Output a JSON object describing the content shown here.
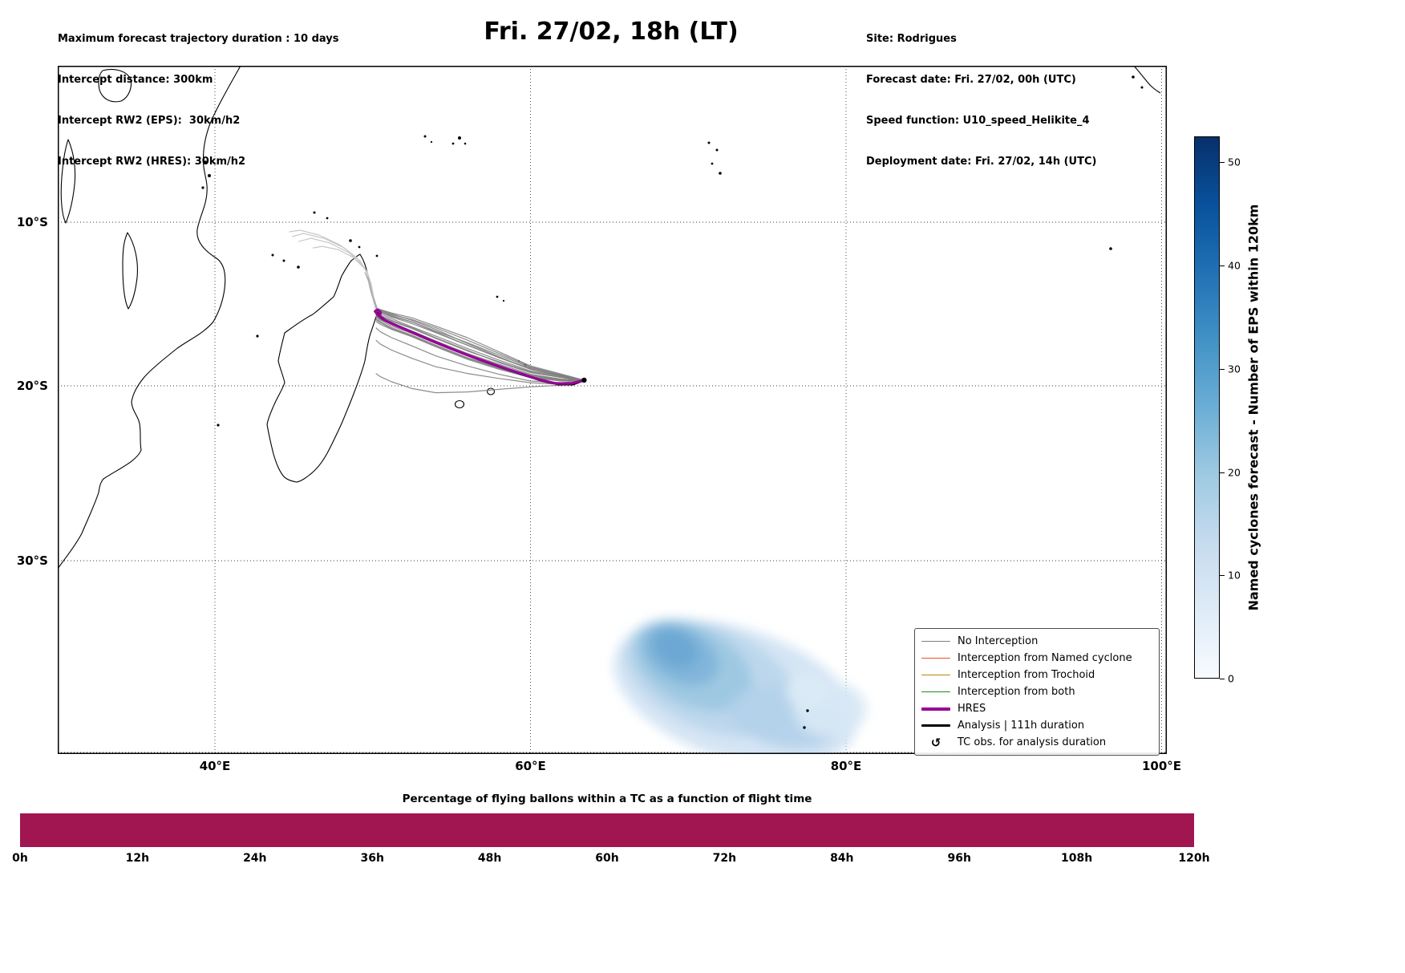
{
  "header": {
    "left_lines": [
      "Maximum forecast trajectory duration : 10 days",
      "Intercept distance: 300km",
      "Intercept RW2 (EPS):  30km/h2",
      "Intercept RW2 (HRES): 30km/h2"
    ],
    "title": "Fri. 27/02, 18h (LT)",
    "right_lines": [
      "Site: Rodrigues",
      "Forecast date: Fri. 27/02, 00h (UTC)",
      "Speed function: U10_speed_Helikite_4",
      "Deployment date: Fri. 27/02, 14h (UTC)"
    ]
  },
  "map": {
    "y_tick_labels": [
      "10°S",
      "20°S",
      "30°S"
    ],
    "x_tick_labels": [
      "40°E",
      "60°E",
      "80°E",
      "100°E"
    ],
    "legend": {
      "entries": [
        {
          "label": "No Interception",
          "type": "line",
          "color": "#7f7f7f",
          "weight": 1.5
        },
        {
          "label": "Interception from Named cyclone",
          "type": "line",
          "color": "#f4501e",
          "weight": 1.5
        },
        {
          "label": "Interception from Trochoid",
          "type": "line",
          "color": "#b8860b",
          "weight": 1.5
        },
        {
          "label": "Interception from both",
          "type": "line",
          "color": "#1f8c1f",
          "weight": 1.5
        },
        {
          "label": "HRES",
          "type": "line",
          "color": "#990099",
          "weight": 4
        },
        {
          "label": "Analysis | 111h duration",
          "type": "line",
          "color": "#000000",
          "weight": 3
        },
        {
          "label": "TC obs. for analysis duration",
          "type": "symbol",
          "symbol": "↺",
          "color": "#000000"
        }
      ]
    }
  },
  "colorbar": {
    "label": "Named cyclones forecast - Number of EPS within 120km",
    "ticks": [
      0,
      10,
      20,
      30,
      40,
      50
    ],
    "vmax": 52.5,
    "colors_low_to_high": [
      "#f7fbff",
      "#deebf7",
      "#c6dbef",
      "#9ecae1",
      "#6baed6",
      "#4292c6",
      "#2171b5",
      "#08519c",
      "#08306b"
    ]
  },
  "chart_data": [
    {
      "type": "line",
      "title": "Fri. 27/02, 18h (LT)",
      "description": "Balloon forecast trajectories from Rodrigues over the SW Indian Ocean with shaded density of named-cyclone EPS positions",
      "site": {
        "name": "Rodrigues",
        "lon_e": 63.4,
        "lat_s": 19.65
      },
      "x_axis": {
        "ticks_deg_e": [
          40,
          60,
          80,
          100
        ],
        "range_deg_e": [
          30,
          100.3
        ]
      },
      "y_axis": {
        "ticks_deg_s": [
          10,
          20,
          30
        ],
        "range_deg_s": [
          0.15,
          40
        ]
      },
      "grid": "dotted",
      "legend_position": "lower right",
      "ensemble": {
        "name": "No Interception (EPS trajectories)",
        "color": "#808080",
        "lons": [
          63.4,
          62.0,
          60.0,
          58.0,
          56.0,
          54.0,
          52.5,
          51.2,
          50.5,
          50.2
        ],
        "members": [
          [
            19.65,
            19.45,
            19.1,
            18.45,
            17.75,
            17.0,
            16.45,
            15.95,
            15.65,
            15.5
          ],
          [
            19.65,
            19.6,
            19.3,
            18.7,
            18.05,
            17.3,
            16.7,
            16.25,
            15.95,
            15.75
          ],
          [
            19.65,
            19.35,
            18.9,
            18.15,
            17.4,
            16.7,
            16.15,
            15.75,
            15.5,
            15.4
          ],
          [
            19.65,
            19.7,
            19.5,
            19.0,
            18.4,
            17.65,
            17.05,
            16.6,
            16.3,
            16.1
          ],
          [
            19.65,
            19.45,
            19.0,
            18.3,
            17.55,
            16.8,
            16.25,
            15.85,
            15.55,
            15.45
          ],
          [
            19.65,
            19.6,
            19.4,
            18.85,
            18.2,
            17.45,
            16.85,
            16.4,
            16.05,
            15.85
          ],
          [
            19.65,
            19.8,
            19.7,
            19.3,
            18.8,
            18.2,
            17.6,
            17.1,
            16.75,
            16.5
          ],
          [
            19.65,
            19.3,
            18.8,
            17.95,
            17.1,
            16.4,
            15.9,
            15.6,
            15.4,
            15.3
          ],
          [
            19.65,
            19.5,
            19.2,
            18.6,
            17.85,
            17.1,
            16.5,
            16.05,
            15.75,
            15.55
          ],
          [
            19.65,
            19.9,
            19.8,
            19.55,
            19.25,
            18.85,
            18.35,
            17.85,
            17.5,
            17.25
          ],
          [
            19.65,
            19.95,
            20.05,
            20.2,
            20.35,
            20.4,
            20.15,
            19.75,
            19.45,
            19.25
          ],
          [
            19.65,
            19.4,
            19.0,
            18.25,
            17.45,
            16.6,
            16.05,
            15.65,
            15.4,
            15.3
          ],
          [
            19.65,
            19.7,
            19.45,
            18.95,
            18.35,
            17.6,
            17.0,
            16.55,
            16.2,
            16.0
          ],
          [
            19.65,
            19.35,
            18.85,
            18.05,
            17.25,
            16.5,
            16.0,
            15.7,
            15.45,
            15.35
          ],
          [
            19.65,
            19.6,
            19.35,
            18.8,
            18.15,
            17.4,
            16.8,
            16.3,
            16.0,
            15.8
          ],
          [
            19.65,
            19.5,
            19.15,
            18.55,
            17.9,
            17.15,
            16.55,
            16.1,
            15.8,
            15.6
          ],
          [
            19.65,
            19.65,
            19.45,
            18.9,
            18.3,
            17.55,
            16.95,
            16.5,
            16.15,
            15.95
          ],
          [
            19.65,
            19.4,
            18.95,
            18.3,
            17.55,
            16.75,
            16.15,
            15.8,
            15.55,
            15.45
          ]
        ]
      },
      "extensions": [
        {
          "color": "#c8c8c8",
          "pts": [
            [
              50.3,
              15.5
            ],
            [
              49.9,
              14.2
            ],
            [
              49.7,
              13.2
            ],
            [
              49.2,
              12.4
            ],
            [
              48.2,
              11.6
            ],
            [
              46.9,
              11.0
            ],
            [
              45.6,
              10.7
            ],
            [
              44.9,
              10.9
            ]
          ]
        },
        {
          "color": "#c8c8c8",
          "pts": [
            [
              50.4,
              15.7
            ],
            [
              50.0,
              14.5
            ],
            [
              49.8,
              13.5
            ],
            [
              49.4,
              12.7
            ],
            [
              48.5,
              11.9
            ],
            [
              47.3,
              11.3
            ],
            [
              46.1,
              11.0
            ],
            [
              45.3,
              11.2
            ]
          ]
        },
        {
          "color": "#c8c8c8",
          "pts": [
            [
              50.2,
              15.4
            ],
            [
              49.8,
              14.0
            ],
            [
              49.6,
              13.0
            ],
            [
              49.0,
              12.2
            ],
            [
              47.9,
              11.4
            ],
            [
              46.6,
              10.8
            ],
            [
              45.4,
              10.5
            ],
            [
              44.7,
              10.6
            ]
          ]
        },
        {
          "color": "#c8c8c8",
          "pts": [
            [
              50.5,
              15.9
            ],
            [
              50.1,
              14.8
            ],
            [
              49.9,
              13.8
            ],
            [
              49.6,
              13.0
            ],
            [
              48.8,
              12.2
            ],
            [
              47.8,
              11.7
            ],
            [
              46.8,
              11.5
            ],
            [
              46.2,
              11.6
            ]
          ]
        },
        {
          "color": "#a8a8a8",
          "pts": [
            [
              50.4,
              15.6
            ],
            [
              50.0,
              14.6
            ],
            [
              49.8,
              13.8
            ],
            [
              49.5,
              13.1
            ]
          ]
        },
        {
          "color": "#a8a8a8",
          "pts": [
            [
              50.3,
              15.5
            ],
            [
              49.9,
              14.3
            ],
            [
              49.7,
              13.4
            ]
          ]
        }
      ],
      "hres": {
        "name": "HRES",
        "color": "#990099",
        "points": [
          [
            63.4,
            19.65
          ],
          [
            62.6,
            19.85
          ],
          [
            61.6,
            19.85
          ],
          [
            60.5,
            19.6
          ],
          [
            59.2,
            19.2
          ],
          [
            57.8,
            18.75
          ],
          [
            56.3,
            18.25
          ],
          [
            54.8,
            17.7
          ],
          [
            53.4,
            17.15
          ],
          [
            52.2,
            16.65
          ],
          [
            51.2,
            16.25
          ],
          [
            50.6,
            15.95
          ],
          [
            50.3,
            15.7
          ],
          [
            50.15,
            15.5
          ],
          [
            50.3,
            15.4
          ],
          [
            50.5,
            15.55
          ],
          [
            50.45,
            15.8
          ]
        ]
      },
      "analysis": {
        "name": "Analysis | 111h duration",
        "color": "#000000",
        "points": [
          [
            63.4,
            19.65
          ],
          [
            62.7,
            19.9
          ],
          [
            61.8,
            19.9
          ],
          [
            60.8,
            19.7
          ],
          [
            59.6,
            19.35
          ],
          [
            58.2,
            18.9
          ],
          [
            56.7,
            18.4
          ],
          [
            55.2,
            17.85
          ],
          [
            53.8,
            17.3
          ],
          [
            52.6,
            16.8
          ],
          [
            51.5,
            16.35
          ],
          [
            50.8,
            16.05
          ],
          [
            50.45,
            15.8
          ],
          [
            50.3,
            15.6
          ]
        ]
      },
      "density": {
        "name": "Named cyclones forecast - Number of EPS within 120km",
        "colormap": "Blues",
        "ellipses": [
          {
            "lon": 73.0,
            "lat": 37.0,
            "rx_deg": 8.0,
            "ry_deg": 3.3,
            "rot": 18,
            "color": "#d3e4f3",
            "opacity": 0.95
          },
          {
            "lon": 71.4,
            "lat": 36.2,
            "rx_deg": 5.8,
            "ry_deg": 2.6,
            "rot": 23,
            "color": "#bcd7ec",
            "opacity": 0.95
          },
          {
            "lon": 70.3,
            "lat": 35.6,
            "rx_deg": 4.0,
            "ry_deg": 2.0,
            "rot": 27,
            "color": "#9cc7e2",
            "opacity": 0.95
          },
          {
            "lon": 69.5,
            "lat": 35.0,
            "rx_deg": 2.6,
            "ry_deg": 1.4,
            "rot": 29,
            "color": "#7fb4d9",
            "opacity": 0.95
          },
          {
            "lon": 69.2,
            "lat": 34.7,
            "rx_deg": 1.5,
            "ry_deg": 0.9,
            "rot": 29,
            "color": "#6aa8d3",
            "opacity": 0.95
          },
          {
            "lon": 76.2,
            "lat": 38.2,
            "rx_deg": 3.6,
            "ry_deg": 1.5,
            "rot": 10,
            "color": "#b3d2ea",
            "opacity": 0.9
          },
          {
            "lon": 79.0,
            "lat": 37.8,
            "rx_deg": 2.3,
            "ry_deg": 1.4,
            "rot": 0,
            "color": "#d8e8f5",
            "opacity": 0.9
          },
          {
            "lon": 77.5,
            "lat": 36.9,
            "rx_deg": 1.3,
            "ry_deg": 0.9,
            "rot": 0,
            "color": "#dcebf6",
            "opacity": 0.9
          }
        ]
      }
    },
    {
      "type": "bar",
      "title": "Percentage of flying ballons within a TC as a function of flight time",
      "x_tick_labels": [
        "0h",
        "12h",
        "24h",
        "36h",
        "48h",
        "60h",
        "72h",
        "84h",
        "96h",
        "108h",
        "120h"
      ],
      "x_range_hours": [
        0,
        120
      ],
      "bar_appearance": "single constant full-height bar spanning 0h to 120h",
      "color": "#a11551"
    }
  ]
}
